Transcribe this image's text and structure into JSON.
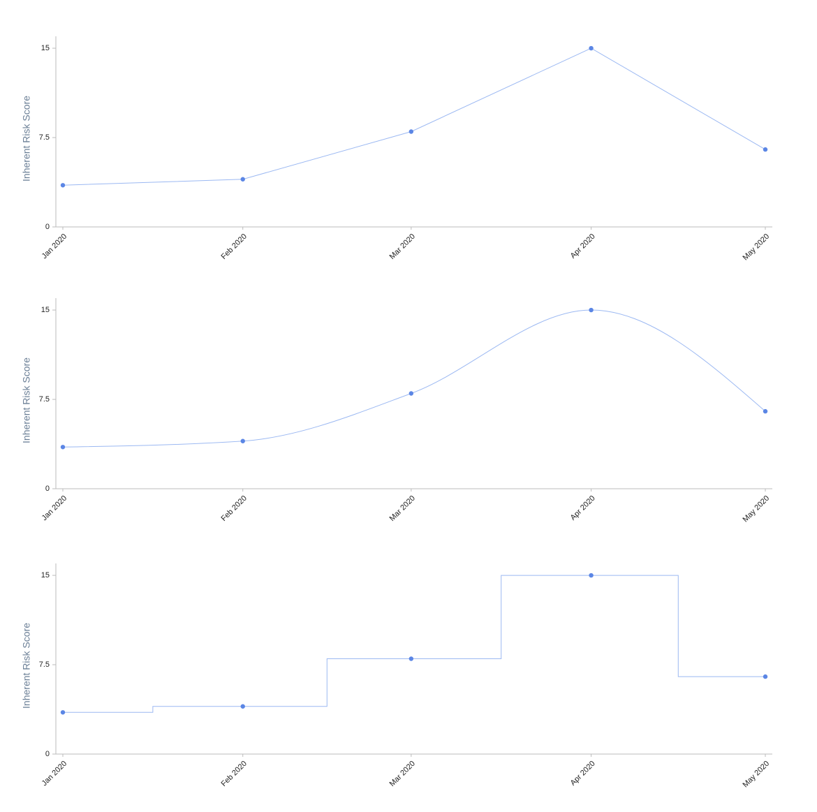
{
  "chart_data": [
    {
      "type": "line",
      "curve": "linear",
      "y_label": "Inherent Risk Score",
      "x": [
        "2020-01",
        "2020-02",
        "2020-03",
        "2020-04",
        "2020-05"
      ],
      "xticks": [
        {
          "value": "2020-01",
          "label": "Jan 2020"
        },
        {
          "value": "2020-02",
          "label": "Feb 2020"
        },
        {
          "value": "2020-03",
          "label": "Mar 2020"
        },
        {
          "value": "2020-04",
          "label": "Apr 2020"
        },
        {
          "value": "2020-05",
          "label": "May 2020"
        }
      ],
      "values": [
        3.5,
        4,
        8,
        15,
        6.5
      ],
      "line_color": "#9bb8f2",
      "point_color": "#5b86e5",
      "ylim": [
        0,
        16
      ],
      "yticks": [
        0,
        7.5,
        15
      ]
    },
    {
      "type": "line",
      "curve": "monotone",
      "y_label": "Inherent Risk Score",
      "x": [
        "2020-01",
        "2020-02",
        "2020-03",
        "2020-04",
        "2020-05"
      ],
      "xticks": [
        {
          "value": "2020-01",
          "label": "Jan 2020"
        },
        {
          "value": "2020-02",
          "label": "Feb 2020"
        },
        {
          "value": "2020-03",
          "label": "Mar 2020"
        },
        {
          "value": "2020-04",
          "label": "Apr 2020"
        },
        {
          "value": "2020-05",
          "label": "May 2020"
        }
      ],
      "values": [
        3.5,
        4,
        8,
        15,
        6.5
      ],
      "line_color": "#9bb8f2",
      "point_color": "#5b86e5",
      "ylim": [
        0,
        16
      ],
      "yticks": [
        0,
        7.5,
        15
      ]
    },
    {
      "type": "line",
      "curve": "step",
      "y_label": "Inherent Risk Score",
      "x": [
        "2020-01",
        "2020-02",
        "2020-03",
        "2020-04",
        "2020-05"
      ],
      "xticks": [
        {
          "value": "2020-01",
          "label": "Jan 2020"
        },
        {
          "value": "2020-02",
          "label": "Feb 2020"
        },
        {
          "value": "2020-03",
          "label": "Mar 2020"
        },
        {
          "value": "2020-04",
          "label": "Apr 2020"
        },
        {
          "value": "2020-05",
          "label": "May 2020"
        }
      ],
      "values": [
        3.5,
        4,
        8,
        15,
        6.5
      ],
      "line_color": "#9bb8f2",
      "point_color": "#5b86e5",
      "ylim": [
        0,
        16
      ],
      "yticks": [
        0,
        7.5,
        15
      ]
    }
  ]
}
